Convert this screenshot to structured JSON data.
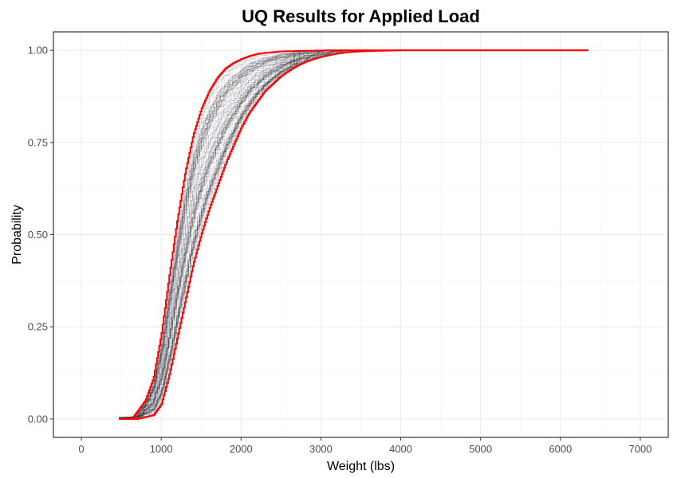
{
  "chart_data": {
    "type": "line",
    "title": "UQ Results for Applied Load",
    "xlabel": "Weight (lbs)",
    "ylabel": "Probability",
    "xlim": [
      -350,
      7350
    ],
    "ylim": [
      -0.05,
      1.05
    ],
    "x_ticks": [
      0,
      1000,
      2000,
      3000,
      4000,
      5000,
      6000,
      7000
    ],
    "x_tick_labels": [
      "0",
      "1000",
      "2000",
      "3000",
      "4000",
      "5000",
      "6000",
      "7000"
    ],
    "y_ticks": [
      0,
      0.25,
      0.5,
      0.75,
      1.0
    ],
    "y_tick_labels": [
      "0.00",
      "0.25",
      "0.50",
      "0.75",
      "1.00"
    ],
    "grid": true,
    "legend": "none",
    "description_of_series": "Many empirical CDF curves (grey) bounded by two red envelope CDFs",
    "colors": {
      "curves": "#000000",
      "curves_faint": "#b8b8d0",
      "bounds": "#ff0000"
    },
    "bounds": [
      {
        "role": "lower-envelope",
        "x": [
          470,
          600,
          700,
          800,
          900,
          1000,
          1100,
          1200,
          1300,
          1400,
          1500,
          1600,
          1700,
          1800,
          1900,
          2000,
          2100,
          2200,
          2300,
          2400,
          2500,
          2600,
          2700,
          2800,
          2900,
          3000,
          3100,
          3200,
          3300,
          3400,
          3600,
          3800,
          4000,
          5000,
          6350
        ],
        "y": [
          0,
          0,
          0,
          0.005,
          0.01,
          0.04,
          0.12,
          0.22,
          0.32,
          0.42,
          0.5,
          0.57,
          0.63,
          0.69,
          0.74,
          0.79,
          0.83,
          0.86,
          0.89,
          0.91,
          0.93,
          0.945,
          0.958,
          0.968,
          0.976,
          0.982,
          0.987,
          0.991,
          0.994,
          0.996,
          0.998,
          0.999,
          1.0,
          1.0,
          1.0
        ]
      },
      {
        "role": "upper-envelope",
        "x": [
          470,
          600,
          650,
          700,
          800,
          900,
          1000,
          1100,
          1200,
          1300,
          1400,
          1500,
          1600,
          1700,
          1800,
          1900,
          2000,
          2100,
          2200,
          2300,
          2400,
          2500,
          2700,
          2900,
          3100,
          3400,
          3800,
          4500,
          6350
        ],
        "y": [
          0,
          0,
          0.005,
          0.02,
          0.05,
          0.11,
          0.23,
          0.39,
          0.54,
          0.67,
          0.77,
          0.84,
          0.89,
          0.925,
          0.95,
          0.965,
          0.976,
          0.984,
          0.99,
          0.993,
          0.995,
          0.997,
          0.998,
          0.999,
          1.0,
          1.0,
          1.0,
          1.0,
          1.0
        ]
      }
    ]
  }
}
